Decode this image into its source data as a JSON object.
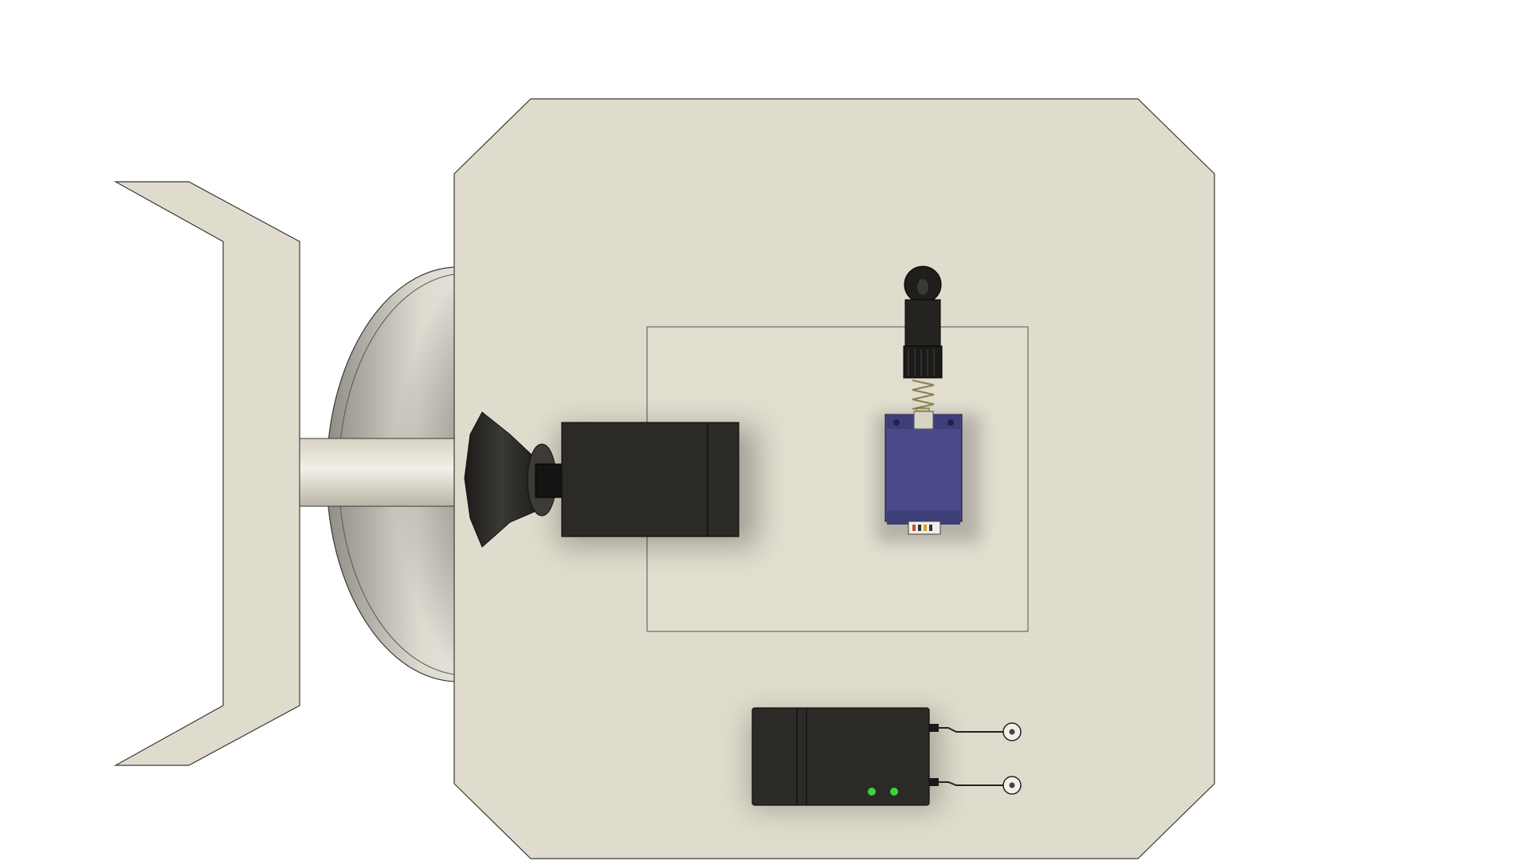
{
  "scene": {
    "background_color": "#ffffff",
    "plate_color": "#e0dccd",
    "edge_color": "#3a3a36",
    "component_dark_color": "#2b2a27",
    "servo_color": "#4a4a8a",
    "led_color": "#39d639",
    "spring_color": "#c9c08a"
  }
}
